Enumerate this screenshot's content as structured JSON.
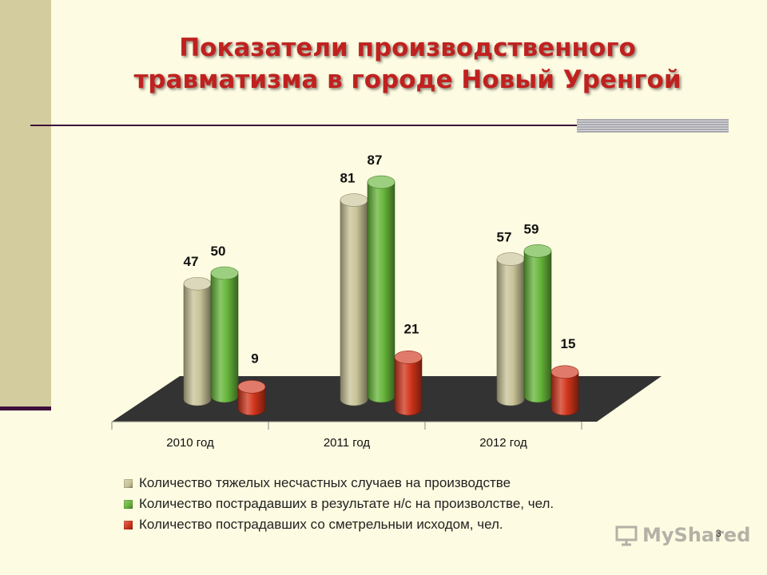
{
  "slide": {
    "title_line1": "Показатели производственного",
    "title_line2": "травматизма в городе Новый Уренгой",
    "page_number": "3",
    "watermark": "MyShared"
  },
  "colors": {
    "series": [
      "#c8c397",
      "#66b53a",
      "#d0341b"
    ],
    "title": "#c0211f",
    "floor": "#333333"
  },
  "chart_data": {
    "type": "bar",
    "style": "3d-cylinder",
    "categories": [
      "2010 год",
      "2011 год",
      "2012 год"
    ],
    "series": [
      {
        "name": "Количество тяжелых несчастных случаев на производстве",
        "values": [
          47,
          81,
          57
        ]
      },
      {
        "name": "Количество пострадавших в результате н/с на произволстве, чел.",
        "values": [
          50,
          87,
          59
        ]
      },
      {
        "name": "Количество пострадавших со сметрельныи исходом, чел.",
        "values": [
          9,
          21,
          15
        ]
      }
    ],
    "legend_position": "bottom",
    "grid": false,
    "data_labels": true,
    "ylim": [
      0,
      100
    ]
  }
}
